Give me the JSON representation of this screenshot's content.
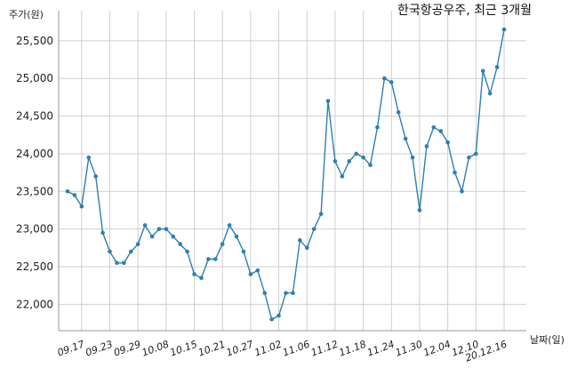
{
  "chart_data": {
    "type": "line",
    "title": "한국항공우주, 최근 3개월",
    "ylabel": "주가(원)",
    "xlabel": "날짜(일)",
    "ylim": [
      21650,
      25900
    ],
    "yticks": [
      22000,
      22500,
      23000,
      23500,
      24000,
      24500,
      25000,
      25500
    ],
    "ytick_labels": [
      "22,000",
      "22,500",
      "23,000",
      "23,500",
      "24,000",
      "24,500",
      "25,000",
      "25,500"
    ],
    "grid": true,
    "line_color": "#2e7fb0",
    "series": [
      {
        "values": [
          23500,
          23450,
          23300,
          23950,
          23700,
          22950,
          22700,
          22550,
          22550,
          22700,
          22800,
          23050,
          22900,
          23000,
          23000,
          22900,
          22800,
          22700,
          22400,
          22350,
          22600,
          22600,
          22800,
          23050,
          22900,
          22700,
          22400,
          22450,
          22150,
          21800,
          21850,
          22150,
          22150,
          22850,
          22750,
          23000,
          23200,
          24700,
          23900,
          23700,
          23900,
          24000,
          23950,
          23850,
          24350,
          25000,
          24950,
          24550,
          24200,
          23950,
          23250,
          24100,
          24350,
          24300,
          24150,
          23750,
          23500,
          23950,
          24000,
          25100,
          24800,
          25150,
          25650
        ]
      }
    ],
    "x_tick_labels": [
      {
        "index": 2,
        "label": "09.17"
      },
      {
        "index": 6,
        "label": "09.23"
      },
      {
        "index": 10,
        "label": "09.29"
      },
      {
        "index": 14,
        "label": "10.08"
      },
      {
        "index": 18,
        "label": "10.15"
      },
      {
        "index": 22,
        "label": "10.21"
      },
      {
        "index": 26,
        "label": "10.27"
      },
      {
        "index": 30,
        "label": "11.02"
      },
      {
        "index": 34,
        "label": "11.06"
      },
      {
        "index": 38,
        "label": "11.12"
      },
      {
        "index": 42,
        "label": "11.18"
      },
      {
        "index": 46,
        "label": "11.24"
      },
      {
        "index": 50,
        "label": "11.30"
      },
      {
        "index": 54,
        "label": "12.04"
      },
      {
        "index": 58,
        "label": "12.10"
      },
      {
        "index": 62,
        "label": "20.12.16"
      }
    ]
  }
}
